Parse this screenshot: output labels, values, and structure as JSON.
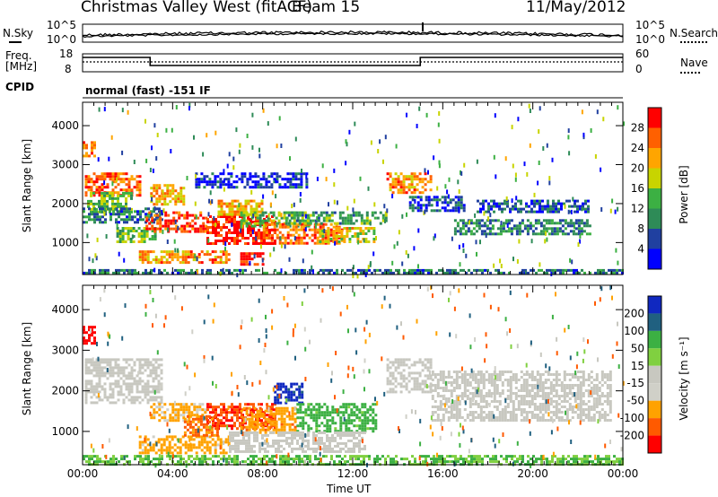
{
  "header": {
    "title": "Christmas Valley West (fitACF)",
    "beam": "Beam 15",
    "date": "11/May/2012"
  },
  "strips": {
    "nsky_label": "N.Sky",
    "nsearch_label": "N.Search",
    "nsky_ticks": [
      "10^5",
      "10^0"
    ],
    "nsearch_ticks": [
      "10^5",
      "10^0"
    ],
    "freq_label_1": "Freq.",
    "freq_label_2": "[MHz]",
    "freq_ticks": [
      "18",
      "8"
    ],
    "nave_label": "Nave",
    "nave_ticks": [
      "60",
      "0"
    ],
    "cpid_label": "CPID",
    "cpid_value": "normal (fast) -151 IF"
  },
  "colors": {
    "power": [
      "#0000ff",
      "#2040a0",
      "#2e8b57",
      "#3cb043",
      "#c8d400",
      "#ffa500",
      "#ff6000",
      "#ff0000"
    ],
    "velocity": [
      "#ff0000",
      "#ff5a00",
      "#ffa200",
      "#d0d0c8",
      "#c8c8c0",
      "#80d040",
      "#3cb043",
      "#206080",
      "#1028c0"
    ]
  },
  "chart_data": [
    {
      "type": "heatmap",
      "name": "power-panel",
      "ylabel": "Slant Range [km]",
      "xlabel": "",
      "x_ticks": [
        "00:00",
        "04:00",
        "08:00",
        "12:00",
        "16:00",
        "20:00",
        "00:00"
      ],
      "y_ticks": [
        1000,
        2000,
        3000,
        4000
      ],
      "xlim_hours": [
        0,
        24
      ],
      "ylim": [
        180,
        4600
      ],
      "colorbar": {
        "label": "Power [dB]",
        "ticks": [
          4,
          8,
          12,
          16,
          20,
          24,
          28
        ],
        "range": [
          0,
          30
        ]
      },
      "regions": [
        {
          "t": [
            0.0,
            0.5
          ],
          "r": [
            3200,
            3600
          ],
          "v": 24
        },
        {
          "t": [
            0.1,
            2.5
          ],
          "r": [
            2200,
            2800
          ],
          "v": 24
        },
        {
          "t": [
            0.2,
            2.2
          ],
          "r": [
            1800,
            2300
          ],
          "v": 14
        },
        {
          "t": [
            0.0,
            3.5
          ],
          "r": [
            1500,
            1900
          ],
          "v": 8
        },
        {
          "t": [
            1.5,
            3.2
          ],
          "r": [
            1000,
            1400
          ],
          "v": 14
        },
        {
          "t": [
            2.8,
            5.5
          ],
          "r": [
            1300,
            1800
          ],
          "v": 26
        },
        {
          "t": [
            3.0,
            4.5
          ],
          "r": [
            2000,
            2500
          ],
          "v": 20
        },
        {
          "t": [
            2.5,
            6.5
          ],
          "r": [
            500,
            800
          ],
          "v": 22
        },
        {
          "t": [
            5.5,
            8.5
          ],
          "r": [
            1000,
            1700
          ],
          "v": 28
        },
        {
          "t": [
            6.0,
            8.0
          ],
          "r": [
            1700,
            2100
          ],
          "v": 20
        },
        {
          "t": [
            7.0,
            8.0
          ],
          "r": [
            450,
            750
          ],
          "v": 28
        },
        {
          "t": [
            7.0,
            10.0
          ],
          "r": [
            1400,
            1800
          ],
          "v": 14
        },
        {
          "t": [
            8.0,
            11.5
          ],
          "r": [
            1000,
            1500
          ],
          "v": 24
        },
        {
          "t": [
            9.0,
            13.5
          ],
          "r": [
            1500,
            1800
          ],
          "v": 12
        },
        {
          "t": [
            10.5,
            13.0
          ],
          "r": [
            1000,
            1400
          ],
          "v": 18
        },
        {
          "t": [
            13.5,
            15.5
          ],
          "r": [
            2300,
            2800
          ],
          "v": 22
        },
        {
          "t": [
            14.5,
            17.0
          ],
          "r": [
            1800,
            2200
          ],
          "v": 6
        },
        {
          "t": [
            16.5,
            22.5
          ],
          "r": [
            1200,
            1600
          ],
          "v": 9
        },
        {
          "t": [
            17.5,
            22.5
          ],
          "r": [
            1800,
            2100
          ],
          "v": 6
        },
        {
          "t": [
            5.0,
            10.0
          ],
          "r": [
            2400,
            2800
          ],
          "v": 4
        },
        {
          "t": [
            0.0,
            24.0
          ],
          "r": [
            200,
            320
          ],
          "v": 8
        }
      ]
    },
    {
      "type": "heatmap",
      "name": "velocity-panel",
      "ylabel": "Slant Range [km]",
      "xlabel": "Time UT",
      "x_ticks": [
        "00:00",
        "04:00",
        "08:00",
        "12:00",
        "16:00",
        "20:00",
        "00:00"
      ],
      "y_ticks": [
        1000,
        2000,
        3000,
        4000
      ],
      "xlim_hours": [
        0,
        24
      ],
      "ylim": [
        180,
        4600
      ],
      "colorbar": {
        "label": "Velocity [m s⁻¹]",
        "ticks": [
          200,
          100,
          50,
          15,
          -15,
          -50,
          -100,
          -200
        ]
      },
      "regions": [
        {
          "t": [
            0.0,
            0.5
          ],
          "r": [
            3200,
            3600
          ],
          "v": -250
        },
        {
          "t": [
            0.1,
            3.5
          ],
          "r": [
            1700,
            2800
          ],
          "v": -5
        },
        {
          "t": [
            2.5,
            6.5
          ],
          "r": [
            500,
            900
          ],
          "v": -70
        },
        {
          "t": [
            3.0,
            5.5
          ],
          "r": [
            1300,
            1700
          ],
          "v": -60
        },
        {
          "t": [
            5.5,
            8.5
          ],
          "r": [
            1100,
            1700
          ],
          "v": -200
        },
        {
          "t": [
            4.5,
            6.0
          ],
          "r": [
            900,
            1400
          ],
          "v": -120
        },
        {
          "t": [
            7.0,
            9.5
          ],
          "r": [
            1000,
            1600
          ],
          "v": -80
        },
        {
          "t": [
            8.5,
            9.7
          ],
          "r": [
            1700,
            2200
          ],
          "v": 250
        },
        {
          "t": [
            9.5,
            13.0
          ],
          "r": [
            1000,
            1700
          ],
          "v": 70
        },
        {
          "t": [
            6.5,
            12.5
          ],
          "r": [
            500,
            1000
          ],
          "v": -5
        },
        {
          "t": [
            13.5,
            15.5
          ],
          "r": [
            2000,
            2800
          ],
          "v": -5
        },
        {
          "t": [
            15.5,
            23.5
          ],
          "r": [
            1300,
            2500
          ],
          "v": 5
        },
        {
          "t": [
            0.0,
            24.0
          ],
          "r": [
            200,
            420
          ],
          "v": 50
        }
      ]
    }
  ]
}
